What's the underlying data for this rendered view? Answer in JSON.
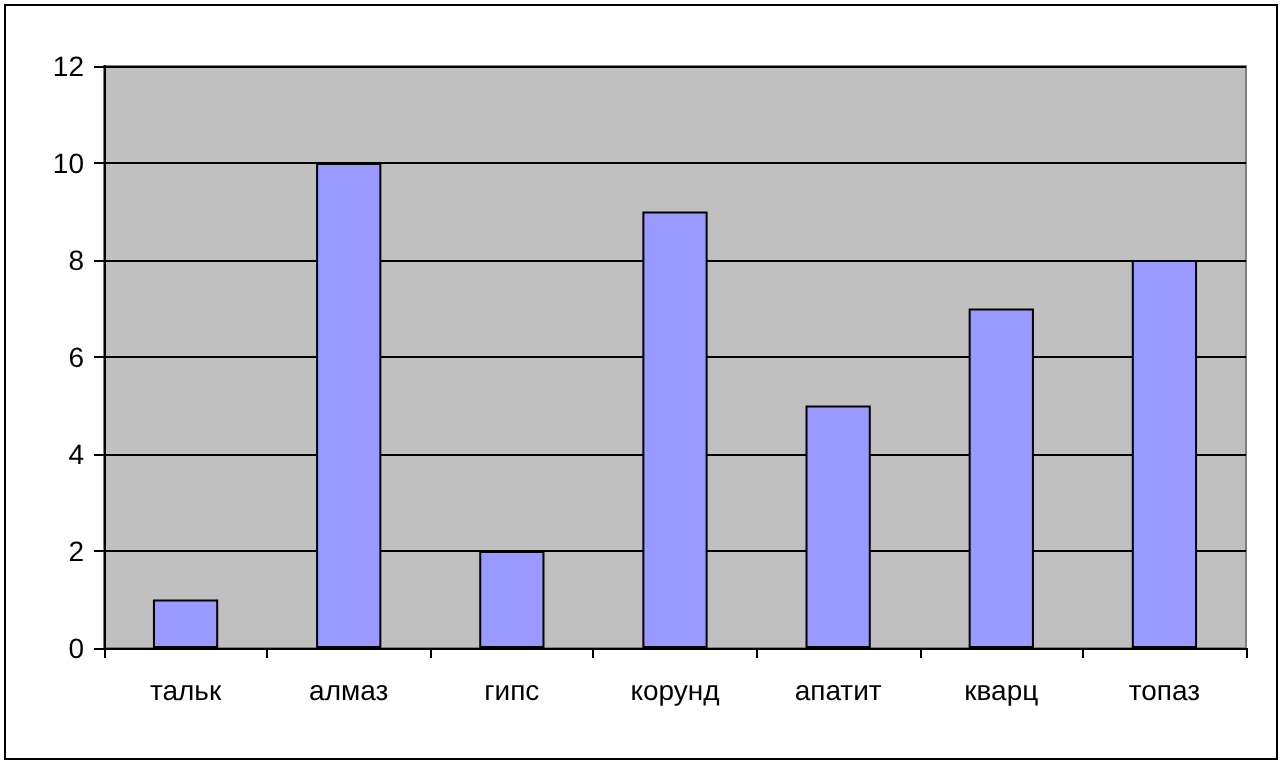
{
  "chart_data": {
    "type": "bar",
    "categories": [
      "тальк",
      "алмаз",
      "гипс",
      "корунд",
      "апатит",
      "кварц",
      "топаз"
    ],
    "values": [
      1,
      10,
      2,
      9,
      5,
      7,
      8
    ],
    "color": "#9999ff",
    "ylim": [
      0,
      12
    ],
    "yticks": [
      0,
      2,
      4,
      6,
      8,
      10,
      12
    ],
    "grid": "y"
  }
}
